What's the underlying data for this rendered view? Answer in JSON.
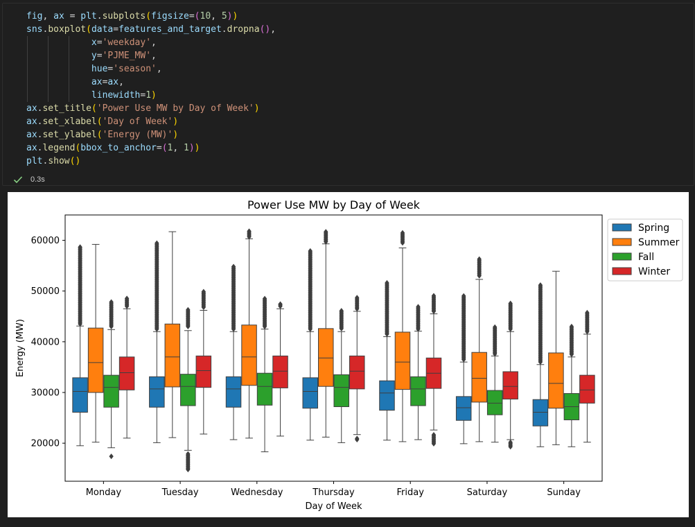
{
  "code_cell": {
    "lines": [
      [
        [
          "fig",
          "var"
        ],
        [
          ", ",
          "op"
        ],
        [
          "ax",
          "var"
        ],
        [
          " = ",
          "op"
        ],
        [
          "plt",
          "var"
        ],
        [
          ".",
          "op"
        ],
        [
          "subplots",
          "fn"
        ],
        [
          "(",
          "p1"
        ],
        [
          "figsize",
          "var"
        ],
        [
          "=",
          "op"
        ],
        [
          "(",
          "p2"
        ],
        [
          "10",
          "num"
        ],
        [
          ", ",
          "op"
        ],
        [
          "5",
          "num"
        ],
        [
          ")",
          "p2"
        ],
        [
          ")",
          "p1"
        ]
      ],
      [
        [
          "sns",
          "var"
        ],
        [
          ".",
          "op"
        ],
        [
          "boxplot",
          "fn"
        ],
        [
          "(",
          "p1"
        ],
        [
          "data",
          "var"
        ],
        [
          "=",
          "op"
        ],
        [
          "features_and_target",
          "var"
        ],
        [
          ".",
          "op"
        ],
        [
          "dropna",
          "fn"
        ],
        [
          "()",
          "p2"
        ],
        [
          ",",
          "op"
        ]
      ],
      [
        [
          "            x",
          "var"
        ],
        [
          "=",
          "op"
        ],
        [
          "'weekday'",
          "str"
        ],
        [
          ",",
          "op"
        ]
      ],
      [
        [
          "            y",
          "var"
        ],
        [
          "=",
          "op"
        ],
        [
          "'PJME_MW'",
          "str"
        ],
        [
          ",",
          "op"
        ]
      ],
      [
        [
          "            hue",
          "var"
        ],
        [
          "=",
          "op"
        ],
        [
          "'season'",
          "str"
        ],
        [
          ",",
          "op"
        ]
      ],
      [
        [
          "            ax",
          "var"
        ],
        [
          "=",
          "op"
        ],
        [
          "ax",
          "var"
        ],
        [
          ",",
          "op"
        ]
      ],
      [
        [
          "            linewidth",
          "var"
        ],
        [
          "=",
          "op"
        ],
        [
          "1",
          "num"
        ],
        [
          ")",
          "p1"
        ]
      ],
      [
        [
          "ax",
          "var"
        ],
        [
          ".",
          "op"
        ],
        [
          "set_title",
          "fn"
        ],
        [
          "(",
          "p1"
        ],
        [
          "'Power Use MW by Day of Week'",
          "str"
        ],
        [
          ")",
          "p1"
        ]
      ],
      [
        [
          "ax",
          "var"
        ],
        [
          ".",
          "op"
        ],
        [
          "set_xlabel",
          "fn"
        ],
        [
          "(",
          "p1"
        ],
        [
          "'Day of Week'",
          "str"
        ],
        [
          ")",
          "p1"
        ]
      ],
      [
        [
          "ax",
          "var"
        ],
        [
          ".",
          "op"
        ],
        [
          "set_ylabel",
          "fn"
        ],
        [
          "(",
          "p1"
        ],
        [
          "'Energy (MW)'",
          "str"
        ],
        [
          ")",
          "p1"
        ]
      ],
      [
        [
          "ax",
          "var"
        ],
        [
          ".",
          "op"
        ],
        [
          "legend",
          "fn"
        ],
        [
          "(",
          "p1"
        ],
        [
          "bbox_to_anchor",
          "var"
        ],
        [
          "=",
          "op"
        ],
        [
          "(",
          "p2"
        ],
        [
          "1",
          "num"
        ],
        [
          ", ",
          "op"
        ],
        [
          "1",
          "num"
        ],
        [
          ")",
          "p2"
        ],
        [
          ")",
          "p1"
        ]
      ],
      [
        [
          "plt",
          "var"
        ],
        [
          ".",
          "op"
        ],
        [
          "show",
          "fn"
        ],
        [
          "()",
          "p1"
        ]
      ]
    ],
    "execution_time": "0.3s",
    "status_icon": "check-icon",
    "syntax_colors": {
      "var": "#9cdcfe",
      "fn": "#dcdcaa",
      "str": "#ce9178",
      "num": "#b5cea8",
      "op": "#d4d4d4",
      "p1": "#ffd700",
      "p2": "#da70d6"
    }
  },
  "chart_data": {
    "type": "boxplot",
    "title": "Power Use MW by Day of Week",
    "xlabel": "Day of Week",
    "ylabel": "Energy (MW)",
    "ylim": [
      12500,
      65000
    ],
    "yticks": [
      20000,
      30000,
      40000,
      50000,
      60000
    ],
    "categories": [
      "Monday",
      "Tuesday",
      "Wednesday",
      "Thursday",
      "Friday",
      "Saturday",
      "Sunday"
    ],
    "legend": {
      "placement": "outside upper right",
      "entries": [
        "Spring",
        "Summer",
        "Fall",
        "Winter"
      ]
    },
    "series": [
      {
        "name": "Spring",
        "color": "#1f77b4",
        "boxes": [
          {
            "whislo": 19500,
            "q1": 26100,
            "med": 30200,
            "q3": 32900,
            "whishi": 43100,
            "fliers": [
              43500,
              46000,
              49000,
              52000,
              55000,
              57000,
              58700
            ]
          },
          {
            "whislo": 20100,
            "q1": 27100,
            "med": 30700,
            "q3": 33100,
            "whishi": 42000,
            "fliers": [
              42500,
              45000,
              48000,
              51000,
              54000,
              57000,
              59500
            ]
          },
          {
            "whislo": 20700,
            "q1": 27100,
            "med": 30700,
            "q3": 33100,
            "whishi": 42000,
            "fliers": [
              42500,
              45000,
              48000,
              51000,
              53000,
              55000
            ]
          },
          {
            "whislo": 20600,
            "q1": 26900,
            "med": 30200,
            "q3": 32900,
            "whishi": 42000,
            "fliers": [
              42500,
              45000,
              48000,
              51000,
              54000,
              56000,
              58000
            ]
          },
          {
            "whislo": 20600,
            "q1": 26500,
            "med": 29900,
            "q3": 32300,
            "whishi": 41000,
            "fliers": [
              41500,
              44000,
              46000,
              48000,
              50000,
              51800
            ]
          },
          {
            "whislo": 19900,
            "q1": 24500,
            "med": 27000,
            "q3": 29200,
            "whishi": 36000,
            "fliers": [
              36500,
              39000,
              41000,
              43000,
              45000,
              47000,
              49200
            ]
          },
          {
            "whislo": 19300,
            "q1": 23400,
            "med": 26100,
            "q3": 28600,
            "whishi": 35500,
            "fliers": [
              36000,
              38500,
              41000,
              43500,
              46000,
              48500,
              51300
            ]
          }
        ]
      },
      {
        "name": "Summer",
        "color": "#ff7f0e",
        "boxes": [
          {
            "whislo": 20200,
            "q1": 30000,
            "med": 35900,
            "q3": 42700,
            "whishi": 59200,
            "fliers": []
          },
          {
            "whislo": 21100,
            "q1": 31100,
            "med": 37000,
            "q3": 43500,
            "whishi": 61700,
            "fliers": []
          },
          {
            "whislo": 21000,
            "q1": 31400,
            "med": 37000,
            "q3": 43300,
            "whishi": 60300,
            "fliers": [
              60700,
              61300,
              61900
            ]
          },
          {
            "whislo": 21200,
            "q1": 31200,
            "med": 36800,
            "q3": 42600,
            "whishi": 59300,
            "fliers": [
              59700,
              60500,
              61200,
              61800
            ]
          },
          {
            "whislo": 20300,
            "q1": 30600,
            "med": 36000,
            "q3": 41900,
            "whishi": 58500,
            "fliers": [
              59500,
              60500,
              61500
            ]
          },
          {
            "whislo": 20300,
            "q1": 28100,
            "med": 32800,
            "q3": 37900,
            "whishi": 52300,
            "fliers": [
              53000,
              54000,
              55000,
              56000,
              56500
            ]
          },
          {
            "whislo": 19700,
            "q1": 26900,
            "med": 31800,
            "q3": 37800,
            "whishi": 53900,
            "fliers": []
          }
        ]
      },
      {
        "name": "Fall",
        "color": "#2ca02c",
        "boxes": [
          {
            "whislo": 19100,
            "q1": 27100,
            "med": 31000,
            "q3": 33400,
            "whishi": 42400,
            "fliers": [
              17400,
              43000,
              44500,
              46000,
              47500,
              48000
            ]
          },
          {
            "whislo": 18600,
            "q1": 27400,
            "med": 31200,
            "q3": 33600,
            "whishi": 42200,
            "fliers": [
              14800,
              15600,
              16400,
              17300,
              18000,
              43000,
              44500,
              46000,
              46500
            ]
          },
          {
            "whislo": 18300,
            "q1": 27500,
            "med": 31200,
            "q3": 33800,
            "whishi": 42500,
            "fliers": [
              43000,
              44500,
              46000,
              47500,
              48700
            ]
          },
          {
            "whislo": 20100,
            "q1": 27200,
            "med": 31000,
            "q3": 33500,
            "whishi": 42000,
            "fliers": [
              42600,
              44000,
              45500,
              46300
            ]
          },
          {
            "whislo": 20700,
            "q1": 27400,
            "med": 30700,
            "q3": 33100,
            "whishi": 42100,
            "fliers": [
              42500,
              44000,
              45500,
              47000
            ]
          },
          {
            "whislo": 20200,
            "q1": 25600,
            "med": 27900,
            "q3": 30400,
            "whishi": 37200,
            "fliers": [
              37600,
              39000,
              40500,
              42000,
              43000
            ]
          },
          {
            "whislo": 19300,
            "q1": 24600,
            "med": 27200,
            "q3": 29800,
            "whishi": 37000,
            "fliers": [
              37500,
              39000,
              40500,
              42000,
              43200
            ]
          }
        ]
      },
      {
        "name": "Winter",
        "color": "#d62728",
        "boxes": [
          {
            "whislo": 21000,
            "q1": 30500,
            "med": 33900,
            "q3": 37000,
            "whishi": 46500,
            "fliers": [
              47000,
              47800,
              48700
            ]
          },
          {
            "whislo": 21800,
            "q1": 31000,
            "med": 34300,
            "q3": 37200,
            "whishi": 46200,
            "fliers": [
              46800,
              48000,
              49000,
              50000
            ]
          },
          {
            "whislo": 21400,
            "q1": 30900,
            "med": 34200,
            "q3": 37200,
            "whishi": 46500,
            "fliers": [
              47000,
              47600
            ]
          },
          {
            "whislo": 21700,
            "q1": 30700,
            "med": 34200,
            "q3": 37200,
            "whishi": 46000,
            "fliers": [
              20700,
              21100,
              46500,
              47500,
              48700
            ]
          },
          {
            "whislo": 22600,
            "q1": 30800,
            "med": 33800,
            "q3": 36800,
            "whishi": 45500,
            "fliers": [
              19900,
              20500,
              21100,
              21700,
              46000,
              47500,
              49200
            ]
          },
          {
            "whislo": 20700,
            "q1": 28700,
            "med": 31200,
            "q3": 34100,
            "whishi": 42000,
            "fliers": [
              19300,
              19800,
              20300,
              42500,
              44000,
              45500,
              47600
            ]
          },
          {
            "whislo": 20200,
            "q1": 27900,
            "med": 30500,
            "q3": 33400,
            "whishi": 41500,
            "fliers": [
              42000,
              43500,
              44800,
              45800
            ]
          }
        ]
      }
    ]
  }
}
